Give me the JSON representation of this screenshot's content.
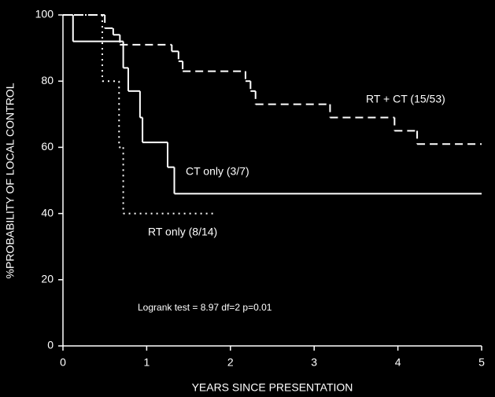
{
  "chart_data": {
    "type": "step",
    "xlabel": "YEARS SINCE PRESENTATION",
    "ylabel": "%PROBABILITY OF LOCAL CONTROL",
    "annotation": "Logrank test = 8.97 df=2 p=0.01",
    "xlim": [
      0,
      5
    ],
    "xticks": [
      0,
      1,
      2,
      3,
      4,
      5
    ],
    "ylim": [
      0,
      100
    ],
    "yticks": [
      0,
      20,
      40,
      60,
      80,
      100
    ],
    "series": [
      {
        "name": "RT + CT (15/53)",
        "color": "#ffffff",
        "dash": "dashed",
        "x": [
          0,
          0.5,
          0.6,
          0.68,
          1.3,
          1.38,
          1.43,
          2.18,
          2.24,
          2.3,
          3.19,
          3.96,
          4.23,
          5
        ],
        "values": [
          100,
          96,
          94,
          91,
          89,
          86,
          83,
          80,
          77,
          73,
          69,
          65,
          61,
          61
        ]
      },
      {
        "name": "CT only (3/7)",
        "color": "#ffffff",
        "dash": "solid",
        "x": [
          0,
          0.12,
          0.72,
          0.78,
          0.92,
          0.95,
          1.25,
          1.33,
          5
        ],
        "values": [
          100,
          92,
          84,
          77,
          69,
          61.5,
          54,
          46,
          46
        ]
      },
      {
        "name": "RT only (8/14)",
        "color": "#ffffff",
        "dash": "dotted",
        "x": [
          0,
          0.47,
          0.67,
          0.72,
          1.8
        ],
        "values": [
          100,
          80,
          60,
          40,
          40
        ]
      }
    ]
  }
}
